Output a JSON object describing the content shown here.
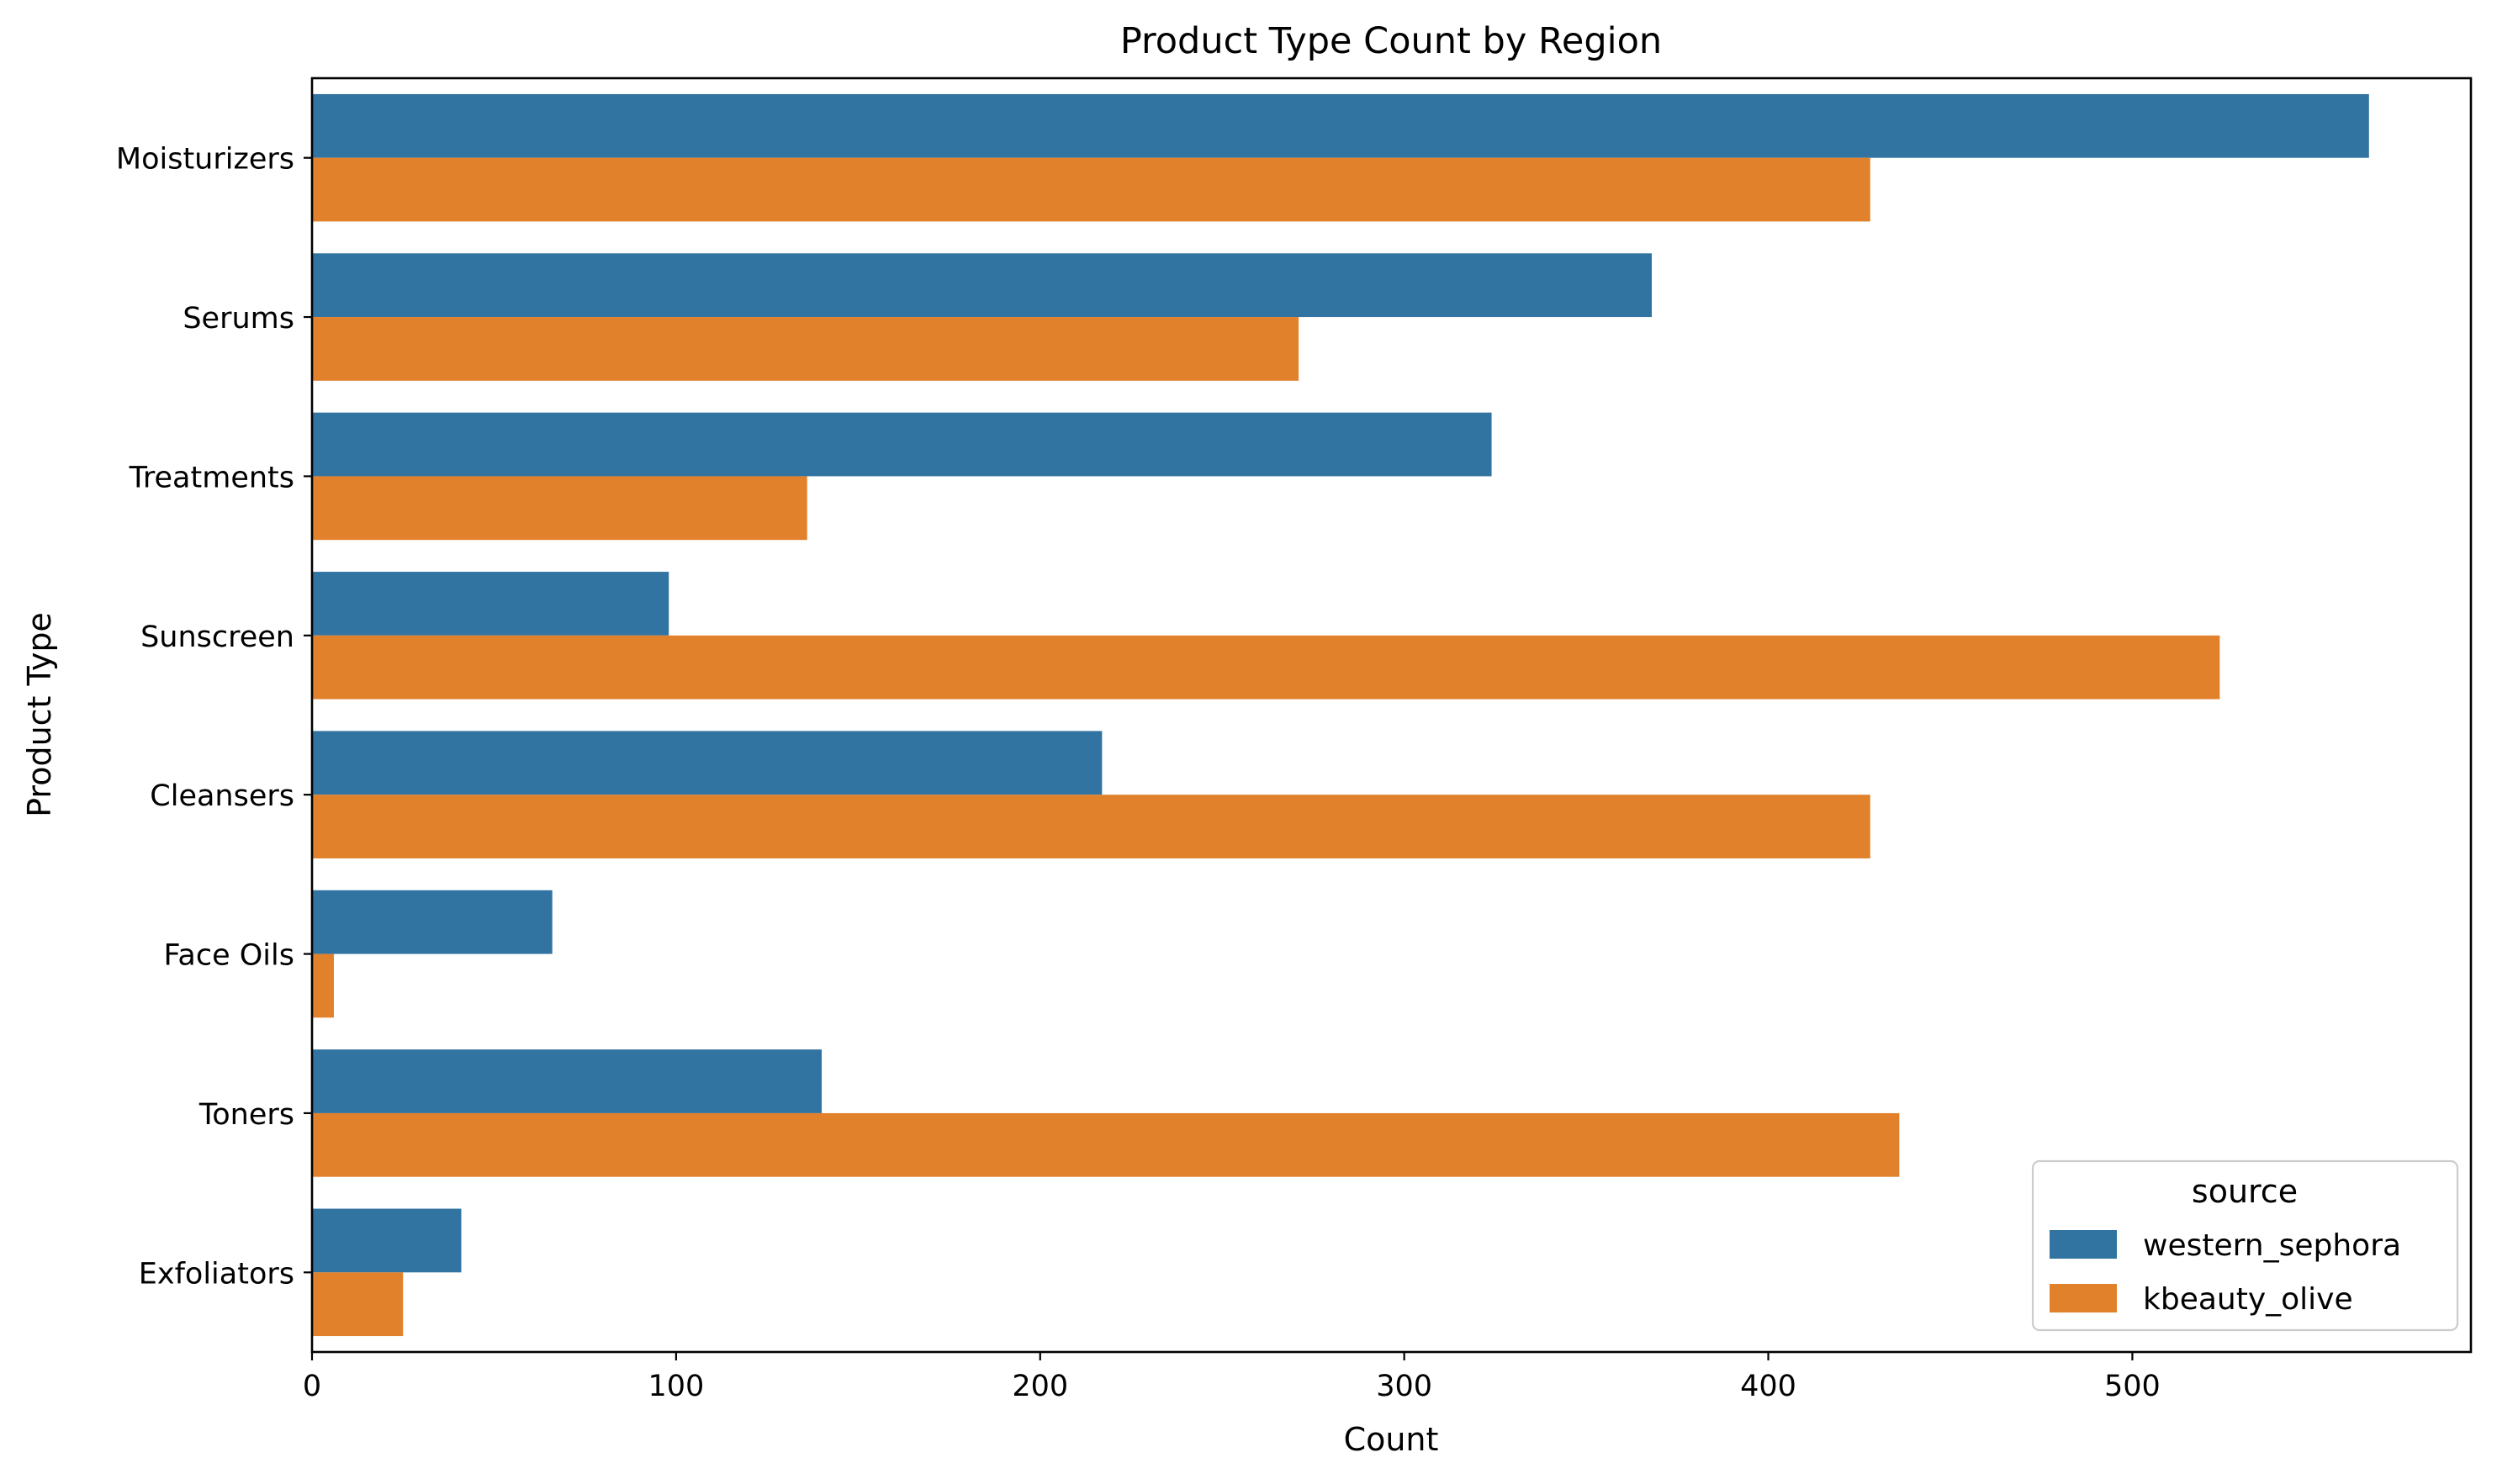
{
  "chart_data": {
    "type": "bar",
    "orientation": "horizontal",
    "title": "Product Type Count by Region",
    "xlabel": "Count",
    "ylabel": "Product Type",
    "categories": [
      "Moisturizers",
      "Serums",
      "Treatments",
      "Sunscreen",
      "Cleansers",
      "Face Oils",
      "Toners",
      "Exfoliators"
    ],
    "series": [
      {
        "name": "western_sephora",
        "color": "#3274a1",
        "values": [
          565,
          368,
          324,
          98,
          217,
          66,
          140,
          41
        ]
      },
      {
        "name": "kbeauty_olive",
        "color": "#e1812c",
        "values": [
          428,
          271,
          136,
          524,
          428,
          6,
          436,
          25
        ]
      }
    ],
    "xlim": [
      0,
      593
    ],
    "xticks": [
      0,
      100,
      200,
      300,
      400,
      500
    ],
    "grid": false,
    "legend": {
      "title": "source",
      "placement": "lower-right"
    }
  }
}
